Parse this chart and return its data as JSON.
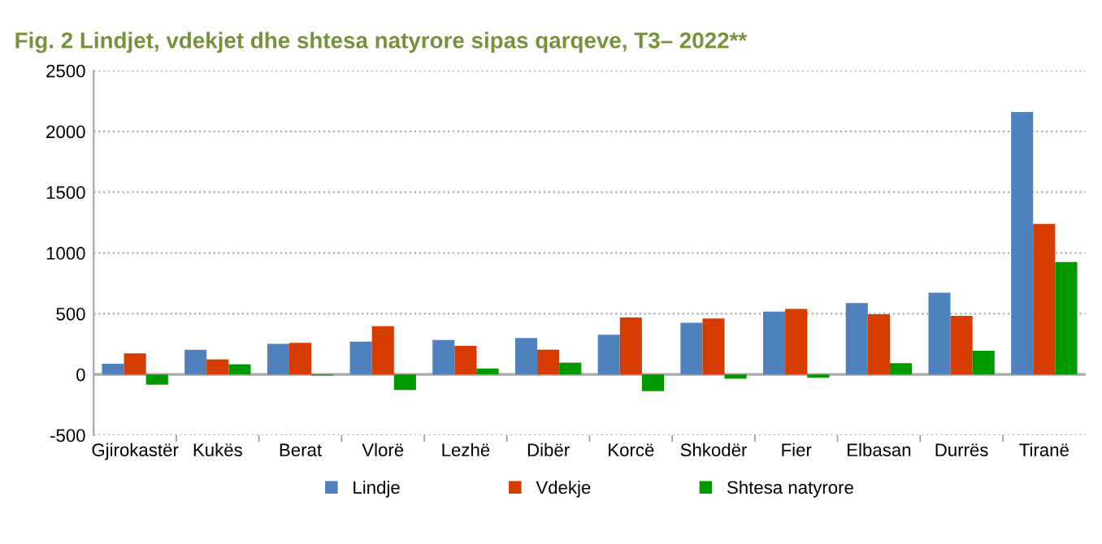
{
  "chart_data": {
    "type": "bar",
    "title": "Fig. 2 Lindjet, vdekjet dhe shtesa natyrore sipas qarqeve, T3– 2022**",
    "categories": [
      "Gjirokastër",
      "Kukës",
      "Berat",
      "Vlorë",
      "Lezhë",
      "Dibër",
      "Korcë",
      "Shkodër",
      "Fier",
      "Elbasan",
      "Durrës",
      "Tiranë"
    ],
    "series": [
      {
        "name": "Lindje",
        "color": "#4f81bd",
        "values": [
          88,
          204,
          252,
          270,
          283,
          301,
          327,
          425,
          518,
          588,
          673,
          2159
        ]
      },
      {
        "name": "Vdekje",
        "color": "#d63b00",
        "values": [
          173,
          124,
          261,
          398,
          235,
          204,
          469,
          460,
          540,
          496,
          482,
          1239
        ]
      },
      {
        "name": "Shtesa natyrore",
        "color": "#009a00",
        "values": [
          -84,
          84,
          -8,
          -128,
          49,
          97,
          -137,
          -35,
          -27,
          93,
          195,
          925
        ]
      }
    ],
    "ylim": [
      -500,
      2500
    ],
    "yticks": [
      -500,
      0,
      500,
      1000,
      1500,
      2000,
      2500
    ],
    "grid": "y",
    "legend": "bottom"
  }
}
